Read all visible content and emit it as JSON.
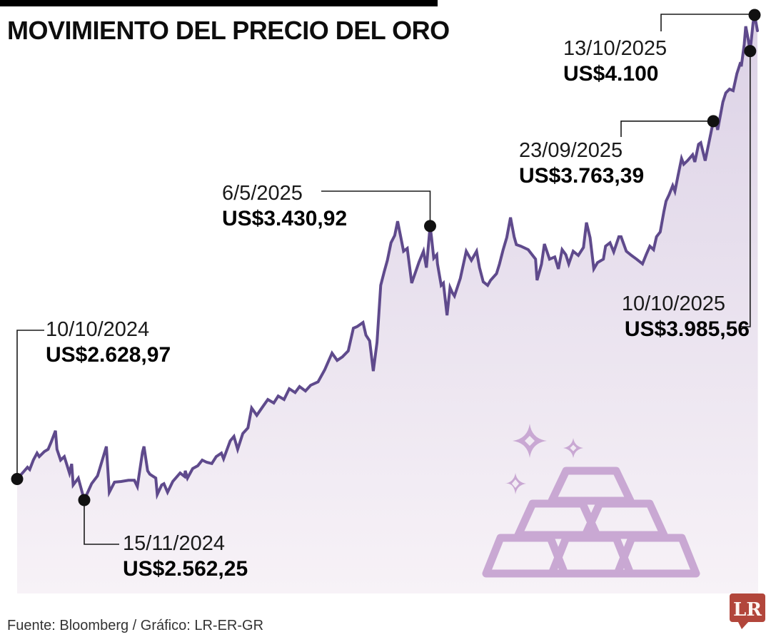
{
  "header": {
    "title": "MOVIMIENTO DEL PRECIO DEL ORO"
  },
  "footer": {
    "credit": "Fuente: Bloomberg / Gráfico: LR-ER-GR"
  },
  "logo": {
    "label": "LR"
  },
  "colors": {
    "line": "#5f4a8c",
    "fill_top": "#dcd2e6",
    "fill_bottom": "#f7f2f7",
    "accent_icon": "#c9a8d3",
    "logo_red": "#b2463b",
    "callout": "#1a1a1a",
    "dot": "#111111"
  },
  "chart_data": {
    "type": "area",
    "title": "MOVIMIENTO DEL PRECIO DEL ORO",
    "x_axis": {
      "start": "10/10/2024",
      "end": "13/10/2025",
      "unit": "fecha",
      "ticks_visible": false
    },
    "y_axis": {
      "min": 2562.25,
      "max": 4100,
      "unit": "US$",
      "ticks_visible": false
    },
    "grid": false,
    "legend": false,
    "annotated_points": [
      {
        "date": "10/10/2024",
        "price": 2628.97,
        "label": "US$2.628,97",
        "t": 0
      },
      {
        "date": "15/11/2024",
        "price": 2562.25,
        "label": "US$2.562,25",
        "t": 9.1
      },
      {
        "date": "6/5/2025",
        "price": 3430.92,
        "label": "US$3.430,92",
        "t": 56.0
      },
      {
        "date": "23/09/2025",
        "price": 3763.39,
        "label": "US$3.763,39",
        "t": 94.4
      },
      {
        "date": "10/10/2025",
        "price": 3985.56,
        "label": "US$3.985,56",
        "t": 99.4
      },
      {
        "date": "13/10/2025",
        "price": 4100,
        "label": "US$4.100",
        "t": 100
      }
    ],
    "series": [
      {
        "name": "Precio del oro (US$)",
        "points": [
          [
            0,
            2628.97
          ],
          [
            0.8,
            2650
          ],
          [
            1.4,
            2666
          ],
          [
            1.7,
            2659
          ],
          [
            2.2,
            2689
          ],
          [
            2.7,
            2711
          ],
          [
            3.0,
            2700
          ],
          [
            3.7,
            2716
          ],
          [
            4.2,
            2723
          ],
          [
            4.6,
            2745
          ],
          [
            5.2,
            2782
          ],
          [
            5.4,
            2723
          ],
          [
            5.9,
            2689
          ],
          [
            6.4,
            2700
          ],
          [
            7.1,
            2648
          ],
          [
            7.4,
            2677
          ],
          [
            7.6,
            2610
          ],
          [
            8.3,
            2632
          ],
          [
            9.1,
            2562.25
          ],
          [
            10.1,
            2614
          ],
          [
            10.9,
            2639
          ],
          [
            11.2,
            2662
          ],
          [
            12.1,
            2732
          ],
          [
            12.5,
            2587
          ],
          [
            13.2,
            2619
          ],
          [
            14.1,
            2621
          ],
          [
            15.1,
            2625
          ],
          [
            15.9,
            2625
          ],
          [
            16.3,
            2605
          ],
          [
            17.0,
            2714
          ],
          [
            17.2,
            2732
          ],
          [
            17.7,
            2655
          ],
          [
            18.0,
            2644
          ],
          [
            18.8,
            2632
          ],
          [
            19.0,
            2580
          ],
          [
            19.6,
            2610
          ],
          [
            19.9,
            2614
          ],
          [
            20.4,
            2587
          ],
          [
            21.1,
            2621
          ],
          [
            22.1,
            2648
          ],
          [
            22.7,
            2637
          ],
          [
            22.8,
            2655
          ],
          [
            23.1,
            2632
          ],
          [
            23.8,
            2662
          ],
          [
            24.5,
            2671
          ],
          [
            25.1,
            2689
          ],
          [
            25.7,
            2682
          ],
          [
            26.4,
            2678
          ],
          [
            27.0,
            2700
          ],
          [
            27.7,
            2711
          ],
          [
            28.0,
            2693
          ],
          [
            28.9,
            2750
          ],
          [
            29.4,
            2764
          ],
          [
            29.9,
            2723
          ],
          [
            30.6,
            2773
          ],
          [
            31.3,
            2791
          ],
          [
            31.8,
            2854
          ],
          [
            32.5,
            2831
          ],
          [
            33.3,
            2858
          ],
          [
            34.0,
            2881
          ],
          [
            34.8,
            2870
          ],
          [
            35.4,
            2892
          ],
          [
            36.2,
            2881
          ],
          [
            36.9,
            2915
          ],
          [
            37.7,
            2903
          ],
          [
            38.3,
            2922
          ],
          [
            39.1,
            2908
          ],
          [
            39.8,
            2926
          ],
          [
            40.8,
            2937
          ],
          [
            41.7,
            2975
          ],
          [
            42.7,
            3028
          ],
          [
            43.4,
            3005
          ],
          [
            44.1,
            3016
          ],
          [
            44.9,
            3035
          ],
          [
            45.6,
            3107
          ],
          [
            46.1,
            3112
          ],
          [
            46.9,
            3125
          ],
          [
            47.3,
            3085
          ],
          [
            47.8,
            3067
          ],
          [
            48.3,
            2971
          ],
          [
            48.8,
            3062
          ],
          [
            49.3,
            3243
          ],
          [
            49.8,
            3288
          ],
          [
            50.2,
            3322
          ],
          [
            50.7,
            3378
          ],
          [
            51.2,
            3401
          ],
          [
            51.6,
            3446
          ],
          [
            52.4,
            3351
          ],
          [
            52.9,
            3360
          ],
          [
            53.5,
            3250
          ],
          [
            54.5,
            3317
          ],
          [
            55.1,
            3351
          ],
          [
            55.5,
            3299
          ],
          [
            56.0,
            3430.92
          ],
          [
            56.2,
            3394
          ],
          [
            56.5,
            3329
          ],
          [
            56.9,
            3340
          ],
          [
            57.0,
            3311
          ],
          [
            57.5,
            3243
          ],
          [
            57.8,
            3250
          ],
          [
            58.3,
            3148
          ],
          [
            58.7,
            3236
          ],
          [
            59.0,
            3220
          ],
          [
            59.3,
            3209
          ],
          [
            60.1,
            3265
          ],
          [
            60.9,
            3351
          ],
          [
            61.6,
            3322
          ],
          [
            62.3,
            3351
          ],
          [
            62.7,
            3299
          ],
          [
            63.2,
            3254
          ],
          [
            63.8,
            3243
          ],
          [
            64.2,
            3259
          ],
          [
            65.0,
            3280
          ],
          [
            65.4,
            3310
          ],
          [
            65.9,
            3355
          ],
          [
            66.4,
            3395
          ],
          [
            66.9,
            3458
          ],
          [
            67.4,
            3397
          ],
          [
            67.7,
            3372
          ],
          [
            68.3,
            3367
          ],
          [
            69.3,
            3356
          ],
          [
            70.3,
            3326
          ],
          [
            70.5,
            3259
          ],
          [
            71.1,
            3310
          ],
          [
            71.5,
            3374
          ],
          [
            72.2,
            3326
          ],
          [
            72.9,
            3333
          ],
          [
            73.4,
            3295
          ],
          [
            73.9,
            3356
          ],
          [
            74.4,
            3340
          ],
          [
            74.8,
            3311
          ],
          [
            75.4,
            3351
          ],
          [
            76.1,
            3338
          ],
          [
            76.8,
            3363
          ],
          [
            77.2,
            3442
          ],
          [
            77.7,
            3394
          ],
          [
            78.2,
            3295
          ],
          [
            78.7,
            3315
          ],
          [
            79.5,
            3326
          ],
          [
            79.8,
            3367
          ],
          [
            80.4,
            3378
          ],
          [
            80.9,
            3349
          ],
          [
            81.6,
            3397
          ],
          [
            81.9,
            3397
          ],
          [
            82.6,
            3351
          ],
          [
            83.3,
            3338
          ],
          [
            84.0,
            3326
          ],
          [
            84.8,
            3311
          ],
          [
            85.3,
            3340
          ],
          [
            85.8,
            3367
          ],
          [
            86.3,
            3356
          ],
          [
            86.7,
            3397
          ],
          [
            87.2,
            3412
          ],
          [
            87.7,
            3476
          ],
          [
            88.0,
            3510
          ],
          [
            88.4,
            3530
          ],
          [
            88.9,
            3559
          ],
          [
            89.2,
            3541
          ],
          [
            89.6,
            3589
          ],
          [
            90.1,
            3645
          ],
          [
            90.4,
            3627
          ],
          [
            90.9,
            3638
          ],
          [
            91.6,
            3657
          ],
          [
            91.9,
            3634
          ],
          [
            92.4,
            3690
          ],
          [
            92.7,
            3695
          ],
          [
            93.3,
            3638
          ],
          [
            93.8,
            3695
          ],
          [
            94.4,
            3763.39
          ],
          [
            94.8,
            3756
          ],
          [
            95.0,
            3736
          ],
          [
            95.7,
            3824
          ],
          [
            96.1,
            3853
          ],
          [
            96.6,
            3865
          ],
          [
            97.1,
            3860
          ],
          [
            97.6,
            3914
          ],
          [
            98.1,
            3950
          ],
          [
            98.2,
            3937
          ],
          [
            98.6,
            4007
          ],
          [
            98.8,
            4064
          ],
          [
            99.1,
            4027
          ],
          [
            99.4,
            3985.56
          ],
          [
            99.8,
            4075
          ],
          [
            100,
            4100
          ]
        ]
      }
    ]
  }
}
